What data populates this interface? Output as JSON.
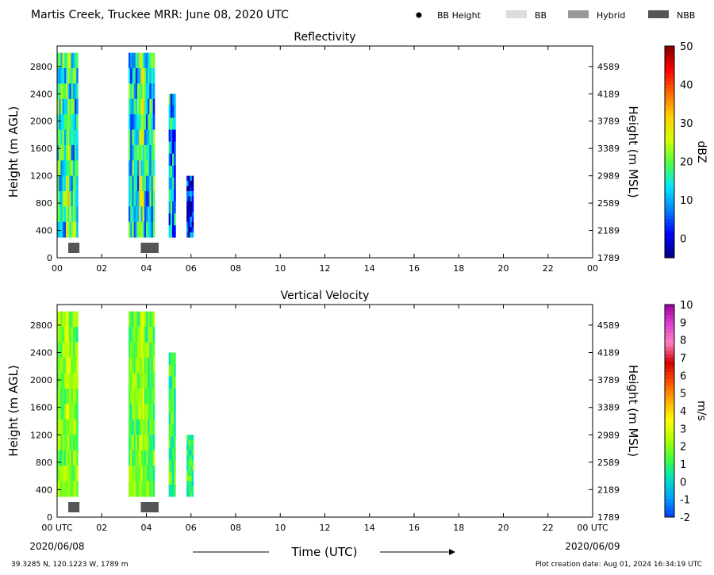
{
  "header": {
    "title": "Martis Creek, Truckee MRR:  June 08, 2020 UTC",
    "legend": [
      {
        "label": "BB Height",
        "kind": "dot",
        "color": "#000000"
      },
      {
        "label": "BB",
        "kind": "box",
        "color": "#dcdcdc"
      },
      {
        "label": "Hybrid",
        "kind": "box",
        "color": "#999999"
      },
      {
        "label": "NBB",
        "kind": "box",
        "color": "#555555"
      }
    ]
  },
  "footer": {
    "location": "39.3285 N, 120.1223 W, 1789 m",
    "creation": "Plot creation date: Aug 01, 2024 16:34:19 UTC",
    "xlabel": "Time (UTC)",
    "start_date": "2020/06/08",
    "end_date": "2020/06/09"
  },
  "chart_data": [
    {
      "type": "heatmap",
      "title": "Reflectivity",
      "xlabel": "",
      "ylabel": "Height (m AGL)",
      "ylabel_right": "Height (m MSL)",
      "x_ticks": [
        "00",
        "02",
        "04",
        "06",
        "08",
        "10",
        "12",
        "14",
        "16",
        "18",
        "20",
        "22",
        "00"
      ],
      "xlim": [
        0,
        24
      ],
      "y_ticks": [
        0,
        400,
        800,
        1200,
        1600,
        2000,
        2400,
        2800
      ],
      "y_ticks_right": [
        1789,
        2189,
        2589,
        2989,
        3389,
        3789,
        4189,
        4589
      ],
      "ylim": [
        0,
        3100
      ],
      "colorbar": {
        "label": "dBZ",
        "range": [
          -5,
          50
        ],
        "ticks": [
          0,
          10,
          20,
          30,
          40,
          50
        ],
        "colors": [
          "#00007f",
          "#0000ff",
          "#0080ff",
          "#00e5ff",
          "#4dff4d",
          "#d4ff00",
          "#ffd000",
          "#ff6a00",
          "#ff0000",
          "#7f0000"
        ]
      },
      "data_segments": [
        {
          "t_start": 0.0,
          "t_end": 0.9,
          "h_bottom": 300,
          "h_top": 3000,
          "mean_dbz": 15
        },
        {
          "t_start": 3.2,
          "t_end": 4.35,
          "h_bottom": 300,
          "h_top": 3000,
          "mean_dbz": 13
        },
        {
          "t_start": 5.0,
          "t_end": 5.25,
          "h_bottom": 300,
          "h_top": 2400,
          "mean_dbz": 10
        },
        {
          "t_start": 5.8,
          "t_end": 6.05,
          "h_bottom": 300,
          "h_top": 1200,
          "mean_dbz": 2
        }
      ],
      "bright_band_markers": [
        {
          "t_start": 0.5,
          "t_end": 1.0,
          "type": "NBB"
        },
        {
          "t_start": 3.75,
          "t_end": 4.55,
          "type": "NBB"
        }
      ]
    },
    {
      "type": "heatmap",
      "title": "Vertical Velocity",
      "xlabel": "Time (UTC)",
      "ylabel": "Height (m AGL)",
      "ylabel_right": "Height (m MSL)",
      "x_ticks": [
        "00 UTC",
        "02",
        "04",
        "06",
        "08",
        "10",
        "12",
        "14",
        "16",
        "18",
        "20",
        "22",
        "00 UTC"
      ],
      "xlim": [
        0,
        24
      ],
      "y_ticks": [
        0,
        400,
        800,
        1200,
        1600,
        2000,
        2400,
        2800
      ],
      "y_ticks_right": [
        1789,
        2189,
        2589,
        2989,
        3389,
        3789,
        4189,
        4589
      ],
      "ylim": [
        0,
        3100
      ],
      "colorbar": {
        "label": "m/s",
        "range": [
          -2,
          10
        ],
        "ticks": [
          -2,
          -1,
          0,
          1,
          2,
          3,
          4,
          5,
          6,
          7,
          8,
          9,
          10
        ],
        "colors": [
          "#0040ff",
          "#00a0ff",
          "#00e0c0",
          "#40ff40",
          "#b0ff00",
          "#ffff00",
          "#ffb000",
          "#ff5000",
          "#d00000",
          "#ff80c0",
          "#e040d0",
          "#a000a0"
        ]
      },
      "data_segments": [
        {
          "t_start": 0.0,
          "t_end": 0.9,
          "h_bottom": 300,
          "h_top": 3000,
          "mean_ms": 1.8
        },
        {
          "t_start": 3.2,
          "t_end": 4.35,
          "h_bottom": 300,
          "h_top": 3000,
          "mean_ms": 1.5
        },
        {
          "t_start": 5.0,
          "t_end": 5.25,
          "h_bottom": 300,
          "h_top": 2400,
          "mean_ms": 1.2
        },
        {
          "t_start": 5.8,
          "t_end": 6.05,
          "h_bottom": 300,
          "h_top": 1200,
          "mean_ms": 1.0
        }
      ],
      "bright_band_markers": [
        {
          "t_start": 0.5,
          "t_end": 1.0,
          "type": "NBB"
        },
        {
          "t_start": 3.75,
          "t_end": 4.55,
          "type": "NBB"
        }
      ]
    }
  ]
}
